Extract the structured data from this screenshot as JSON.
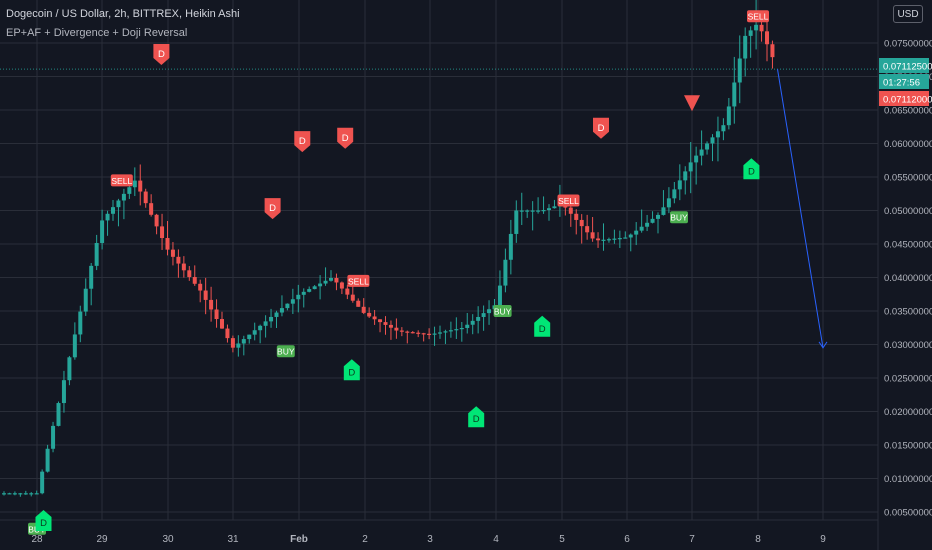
{
  "header": {
    "title": "Dogecoin / US Dollar, 2h, BITTREX, Heikin Ashi",
    "indicator": "EP+AF + Divergence + Doji Reversal",
    "currency_button": "USD"
  },
  "price_tags": {
    "last": "0.07112500",
    "countdown": "01:27:56",
    "other": "0.07112000"
  },
  "colors": {
    "background": "#131722",
    "grid": "#2a2e39",
    "up": "#26a69a",
    "down": "#ef5350",
    "buy_label": "#4caf50",
    "d_up": "#00e676",
    "d_down": "#ef5350",
    "projection": "#2962ff"
  },
  "chart_data": {
    "type": "candlestick",
    "style": "Heikin Ashi",
    "interval": "2h",
    "y_axis": {
      "ticks": [
        "0.07500000",
        "0.07000000",
        "0.06500000",
        "0.06000000",
        "0.05500000",
        "0.05000000",
        "0.04500000",
        "0.04000000",
        "0.03500000",
        "0.03000000",
        "0.02500000",
        "0.02000000",
        "0.01500000",
        "0.01000000",
        "0.00500000"
      ],
      "range": [
        0.0005,
        0.0805
      ]
    },
    "x_axis": {
      "ticks": [
        "28",
        "29",
        "30",
        "31",
        "Feb",
        "2",
        "3",
        "4",
        "5",
        "6",
        "7",
        "8",
        "9"
      ]
    },
    "grid": true,
    "series_approx_close": [
      {
        "date": "28",
        "close": 0.0078
      },
      {
        "date": "29",
        "close": 0.0485
      },
      {
        "date": "29.5",
        "close": 0.0545
      },
      {
        "date": "30",
        "close": 0.044
      },
      {
        "date": "30.5",
        "close": 0.038
      },
      {
        "date": "31",
        "close": 0.0295
      },
      {
        "date": "Feb",
        "close": 0.0375
      },
      {
        "date": "1.5",
        "close": 0.04
      },
      {
        "date": "2",
        "close": 0.0345
      },
      {
        "date": "2.5",
        "close": 0.032
      },
      {
        "date": "3",
        "close": 0.0315
      },
      {
        "date": "3.5",
        "close": 0.0325
      },
      {
        "date": "4",
        "close": 0.036
      },
      {
        "date": "4.3",
        "close": 0.05
      },
      {
        "date": "4.7",
        "close": 0.05
      },
      {
        "date": "5",
        "close": 0.051
      },
      {
        "date": "5.5",
        "close": 0.0455
      },
      {
        "date": "6",
        "close": 0.046
      },
      {
        "date": "6.5",
        "close": 0.0495
      },
      {
        "date": "7",
        "close": 0.0575
      },
      {
        "date": "7.5",
        "close": 0.063
      },
      {
        "date": "7.8",
        "close": 0.076
      },
      {
        "date": "8",
        "close": 0.078
      },
      {
        "date": "8.3",
        "close": 0.0711
      }
    ],
    "signals": [
      {
        "type": "BUY",
        "date": "28",
        "price": 0.0025
      },
      {
        "type": "SELL",
        "date": "29.3",
        "price": 0.0545
      },
      {
        "type": "BUY",
        "date": "31.8",
        "price": 0.029
      },
      {
        "type": "SELL",
        "date": "1.9",
        "price": 0.0395
      },
      {
        "type": "BUY",
        "date": "4.1",
        "price": 0.035
      },
      {
        "type": "SELL",
        "date": "5.1",
        "price": 0.0515
      },
      {
        "type": "BUY",
        "date": "6.8",
        "price": 0.049
      },
      {
        "type": "SELL",
        "date": "8",
        "price": 0.079
      }
    ],
    "divergence_markers": [
      {
        "dir": "down",
        "date": "29.9",
        "price": 0.0735
      },
      {
        "dir": "up",
        "date": "28.1",
        "price": 0.0035
      },
      {
        "dir": "down",
        "date": "31.6",
        "price": 0.0505
      },
      {
        "dir": "down",
        "date": "1.05",
        "price": 0.0605
      },
      {
        "dir": "down",
        "date": "1.7",
        "price": 0.061
      },
      {
        "dir": "up",
        "date": "1.8",
        "price": 0.026
      },
      {
        "dir": "up",
        "date": "3.7",
        "price": 0.019
      },
      {
        "dir": "up",
        "date": "4.7",
        "price": 0.0325
      },
      {
        "dir": "down",
        "date": "5.6",
        "price": 0.0625
      },
      {
        "dir": "up",
        "date": "7.9",
        "price": 0.056
      }
    ],
    "doji_reversal_markers": [
      {
        "dir": "down",
        "date": "7",
        "price": 0.066
      }
    ],
    "projection_line": {
      "from": {
        "date": "8.3",
        "price": 0.0711
      },
      "to": {
        "date": "9",
        "price": 0.0295
      }
    }
  }
}
